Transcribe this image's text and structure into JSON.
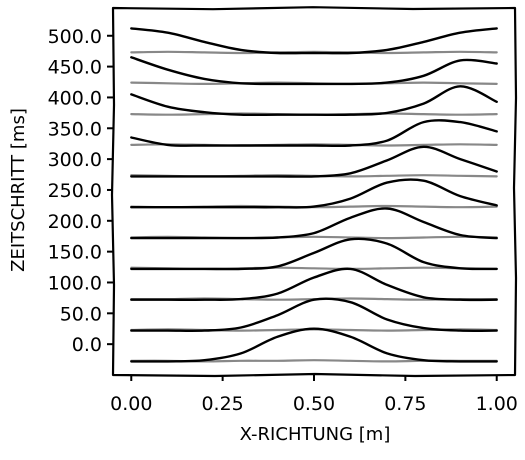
{
  "chart_data": {
    "type": "line",
    "style": "xkcd hand-drawn",
    "xlabel": "X-RICHTUNG [m]",
    "ylabel": "ZEITSCHRITT [ms]",
    "xlim": [
      -0.05,
      1.05
    ],
    "ylim": [
      -50,
      545
    ],
    "xticks": [
      0.0,
      0.25,
      0.5,
      0.75,
      1.0
    ],
    "xtick_labels": [
      "0.00",
      "0.25",
      "0.50",
      "0.75",
      "1.00"
    ],
    "yticks": [
      0,
      50,
      100,
      150,
      200,
      250,
      300,
      350,
      400,
      450,
      500
    ],
    "ytick_labels": [
      "0.0",
      "50.0",
      "100.0",
      "150.0",
      "200.0",
      "250.0",
      "300.0",
      "350.0",
      "400.0",
      "450.0",
      "500.0"
    ],
    "grid": false,
    "legend": "none",
    "colors": {
      "pulse": "#000000",
      "baseline": "#888888"
    },
    "x": [
      0.0,
      0.1,
      0.2,
      0.3,
      0.4,
      0.5,
      0.6,
      0.7,
      0.8,
      0.9,
      1.0
    ],
    "baselines": [
      {
        "time": 0,
        "values": [
          -27,
          -27,
          -28,
          -27,
          -27,
          -26,
          -27,
          -28,
          -27,
          -27,
          -27
        ]
      },
      {
        "time": 50,
        "values": [
          23,
          24,
          23,
          22,
          23,
          24,
          23,
          22,
          23,
          24,
          23
        ]
      },
      {
        "time": 100,
        "values": [
          73,
          73,
          74,
          73,
          72,
          73,
          74,
          73,
          72,
          73,
          73
        ]
      },
      {
        "time": 150,
        "values": [
          124,
          123,
          122,
          123,
          124,
          123,
          122,
          123,
          124,
          123,
          122
        ]
      },
      {
        "time": 200,
        "values": [
          173,
          174,
          173,
          172,
          173,
          174,
          173,
          172,
          173,
          174,
          173
        ]
      },
      {
        "time": 250,
        "values": [
          223,
          222,
          223,
          224,
          223,
          222,
          223,
          224,
          223,
          222,
          223
        ]
      },
      {
        "time": 300,
        "values": [
          274,
          273,
          272,
          273,
          274,
          273,
          272,
          273,
          274,
          273,
          272
        ]
      },
      {
        "time": 350,
        "values": [
          323,
          324,
          323,
          322,
          323,
          324,
          323,
          322,
          323,
          324,
          323
        ]
      },
      {
        "time": 400,
        "values": [
          373,
          372,
          373,
          374,
          373,
          372,
          373,
          374,
          373,
          372,
          373
        ]
      },
      {
        "time": 450,
        "values": [
          424,
          423,
          422,
          423,
          424,
          423,
          422,
          423,
          424,
          423,
          422
        ]
      },
      {
        "time": 500,
        "values": [
          473,
          474,
          473,
          472,
          473,
          474,
          473,
          472,
          473,
          474,
          473
        ]
      }
    ],
    "series": [
      {
        "time": 0,
        "values": [
          -28,
          -28,
          -26,
          -15,
          12,
          25,
          12,
          -15,
          -26,
          -28,
          -28
        ]
      },
      {
        "time": 50,
        "values": [
          22,
          22,
          22,
          27,
          47,
          72,
          68,
          40,
          26,
          22,
          22
        ]
      },
      {
        "time": 100,
        "values": [
          72,
          72,
          72,
          73,
          82,
          108,
          122,
          96,
          76,
          72,
          72
        ]
      },
      {
        "time": 150,
        "values": [
          122,
          122,
          122,
          122,
          126,
          148,
          170,
          163,
          133,
          123,
          122
        ]
      },
      {
        "time": 200,
        "values": [
          172,
          172,
          172,
          172,
          173,
          180,
          205,
          220,
          198,
          177,
          172
        ]
      },
      {
        "time": 250,
        "values": [
          222,
          222,
          222,
          222,
          222,
          223,
          236,
          262,
          265,
          240,
          225
        ]
      },
      {
        "time": 300,
        "values": [
          272,
          272,
          272,
          272,
          272,
          272,
          277,
          298,
          320,
          300,
          280
        ]
      },
      {
        "time": 350,
        "values": [
          335,
          323,
          322,
          322,
          322,
          322,
          322,
          330,
          360,
          360,
          345
        ]
      },
      {
        "time": 400,
        "values": [
          405,
          385,
          376,
          372,
          372,
          372,
          372,
          375,
          390,
          418,
          393
        ]
      },
      {
        "time": 450,
        "values": [
          465,
          445,
          430,
          423,
          422,
          422,
          422,
          424,
          435,
          460,
          455
        ]
      },
      {
        "time": 500,
        "values": [
          512,
          505,
          490,
          477,
          472,
          472,
          472,
          477,
          490,
          505,
          512
        ]
      }
    ]
  }
}
